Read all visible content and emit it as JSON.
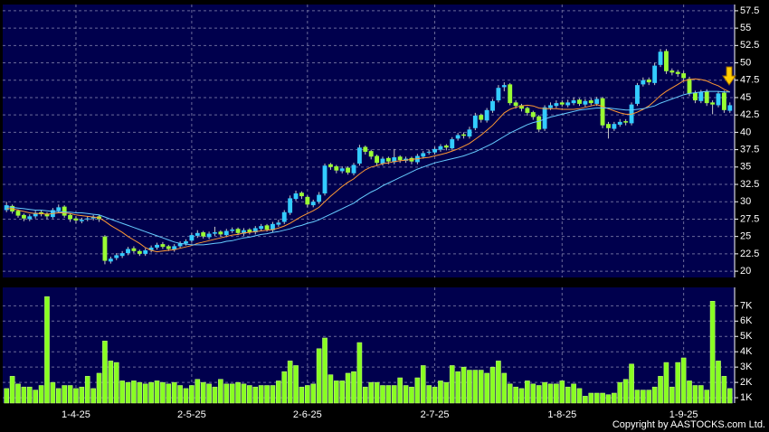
{
  "chart_data": [
    {
      "type": "candlestick",
      "categories": [
        null,
        null,
        null,
        null,
        null,
        null,
        null,
        null,
        null,
        null,
        null,
        null,
        "1-4-25",
        null,
        null,
        null,
        null,
        null,
        null,
        null,
        null,
        null,
        null,
        null,
        null,
        null,
        null,
        null,
        null,
        null,
        null,
        null,
        "2-5-25",
        null,
        null,
        null,
        null,
        null,
        null,
        null,
        null,
        null,
        null,
        null,
        null,
        null,
        null,
        null,
        null,
        null,
        null,
        null,
        "2-6-25",
        null,
        null,
        null,
        null,
        null,
        null,
        null,
        null,
        null,
        null,
        null,
        null,
        null,
        null,
        null,
        null,
        null,
        null,
        null,
        null,
        null,
        "2-7-25",
        null,
        null,
        null,
        null,
        null,
        null,
        null,
        null,
        null,
        null,
        null,
        null,
        null,
        null,
        null,
        null,
        null,
        null,
        null,
        null,
        null,
        "1-8-25",
        null,
        null,
        null,
        null,
        null,
        null,
        null,
        null,
        null,
        null,
        null,
        null,
        null,
        null,
        null,
        null,
        null,
        null,
        null,
        null,
        "1-9-25",
        null,
        null,
        null,
        null,
        null,
        null,
        null,
        null
      ],
      "open": [
        28.8,
        29.4,
        28.7,
        28.1,
        27.5,
        27.9,
        28.5,
        28.3,
        27.8,
        28.7,
        29.3,
        28.1,
        27.6,
        27.2,
        27.5,
        27.6,
        27.9,
        25.0,
        21.4,
        21.9,
        22.2,
        22.6,
        23.3,
        22.9,
        22.5,
        23.0,
        23.4,
        23.9,
        23.6,
        23.1,
        23.6,
        24.0,
        24.4,
        25.1,
        25.6,
        24.9,
        25.4,
        25.7,
        25.2,
        25.8,
        26.1,
        25.4,
        26.0,
        25.6,
        26.1,
        26.6,
        25.9,
        26.7,
        27.1,
        28.4,
        30.4,
        31.3,
        30.7,
        29.5,
        30.0,
        31.2,
        35.4,
        35.1,
        34.4,
        34.9,
        34.1,
        35.5,
        37.9,
        37.3,
        36.6,
        35.5,
        36.3,
        35.7,
        36.5,
        35.9,
        36.3,
        35.7,
        36.5,
        37.1,
        37.1,
        37.5,
        38.1,
        37.7,
        39.1,
        39.7,
        39.4,
        40.6,
        42.5,
        41.7,
        43.1,
        44.6,
        46.5,
        46.9,
        44.3,
        43.9,
        43.5,
        42.9,
        42.3,
        40.5,
        43.5,
        43.8,
        44.3,
        43.9,
        44.2,
        44.7,
        44.0,
        44.6,
        44.1,
        44.9,
        41.2,
        40.5,
        41.1,
        41.6,
        41.3,
        44.1,
        46.9,
        47.6,
        47.1,
        49.7,
        51.7,
        48.9,
        48.7,
        48.5,
        47.7,
        45.7,
        44.5,
        45.9,
        44.3,
        43.9,
        45.7,
        43.1
      ],
      "high": [
        30.0,
        29.6,
        28.9,
        28.3,
        28.2,
        28.7,
        28.8,
        28.5,
        29.1,
        29.6,
        29.5,
        28.3,
        27.9,
        27.7,
        27.9,
        28.1,
        28.1,
        25.2,
        22.1,
        22.6,
        22.9,
        23.5,
        23.6,
        23.1,
        23.3,
        23.7,
        24.1,
        24.2,
        23.8,
        23.9,
        24.3,
        24.6,
        25.5,
        25.9,
        25.8,
        25.7,
        26.4,
        25.9,
        26.1,
        26.3,
        26.3,
        26.2,
        26.2,
        26.5,
        26.8,
        26.8,
        27.1,
        27.4,
        28.8,
        30.9,
        31.6,
        31.5,
        30.9,
        30.3,
        31.4,
        35.5,
        35.6,
        35.3,
        35.1,
        35.1,
        35.6,
        38.2,
        38.1,
        37.5,
        36.8,
        36.5,
        36.5,
        37.6,
        36.7,
        36.5,
        36.5,
        36.9,
        37.3,
        37.5,
        37.9,
        38.3,
        38.3,
        39.3,
        39.9,
        40.0,
        40.8,
        42.8,
        42.7,
        43.5,
        44.8,
        46.8,
        47.2,
        47.1,
        44.6,
        44.1,
        43.7,
        43.1,
        42.5,
        43.9,
        44.3,
        44.6,
        44.6,
        44.7,
        45.0,
        44.9,
        44.8,
        44.9,
        45.1,
        45.1,
        41.5,
        41.5,
        41.9,
        41.9,
        44.3,
        47.1,
        47.9,
        47.9,
        50.0,
        52.0,
        52.0,
        49.2,
        49.0,
        48.8,
        48.0,
        46.0,
        46.1,
        46.2,
        44.6,
        45.9,
        46.0,
        44.3
      ],
      "low": [
        28.5,
        28.3,
        27.7,
        27.2,
        27.2,
        27.6,
        27.9,
        27.5,
        27.6,
        28.4,
        27.7,
        27.1,
        26.9,
        26.9,
        27.2,
        27.3,
        27.1,
        21.0,
        21.1,
        21.6,
        21.9,
        22.3,
        22.6,
        22.2,
        22.2,
        22.7,
        23.1,
        23.2,
        22.9,
        22.8,
        23.3,
        23.7,
        24.1,
        24.8,
        24.7,
        24.6,
        25.1,
        25.0,
        24.9,
        25.5,
        25.2,
        25.1,
        25.3,
        25.3,
        25.8,
        25.7,
        25.6,
        26.4,
        26.8,
        28.1,
        30.1,
        30.4,
        29.2,
        29.2,
        29.7,
        30.9,
        34.6,
        34.1,
        34.1,
        33.9,
        33.8,
        35.2,
        36.8,
        36.1,
        35.2,
        35.2,
        35.4,
        35.4,
        35.6,
        35.6,
        35.4,
        35.4,
        36.2,
        36.8,
        36.8,
        37.2,
        37.4,
        37.4,
        38.8,
        39.1,
        39.1,
        40.3,
        41.4,
        41.4,
        42.8,
        44.3,
        45.9,
        43.9,
        43.4,
        43.0,
        42.4,
        41.8,
        40.0,
        40.2,
        43.2,
        43.5,
        43.7,
        43.6,
        43.9,
        43.8,
        43.7,
        43.9,
        43.8,
        40.6,
        39.1,
        40.2,
        40.8,
        41.0,
        41.0,
        43.8,
        46.6,
        46.8,
        46.8,
        49.4,
        48.4,
        48.2,
        48.0,
        47.4,
        45.2,
        44.2,
        44.2,
        43.8,
        42.6,
        43.6,
        42.8,
        42.8
      ],
      "close": [
        29.5,
        28.6,
        28.0,
        27.6,
        27.9,
        28.4,
        28.2,
        27.9,
        28.8,
        29.2,
        28.0,
        27.5,
        27.3,
        27.4,
        27.6,
        27.8,
        27.5,
        21.5,
        21.8,
        22.3,
        22.6,
        23.2,
        22.9,
        22.5,
        23.0,
        23.4,
        23.8,
        23.5,
        23.2,
        23.6,
        24.0,
        24.3,
        25.2,
        25.5,
        25.0,
        25.4,
        25.6,
        25.3,
        25.8,
        26.0,
        25.5,
        25.9,
        25.6,
        26.2,
        26.5,
        26.0,
        26.8,
        27.0,
        28.5,
        30.5,
        31.2,
        30.8,
        29.6,
        30.0,
        31.0,
        35.2,
        35.0,
        34.5,
        34.8,
        34.2,
        35.3,
        37.8,
        37.2,
        36.5,
        35.6,
        36.2,
        35.8,
        36.4,
        36.0,
        36.2,
        35.8,
        36.6,
        37.0,
        37.2,
        37.6,
        38.0,
        37.8,
        39.0,
        39.6,
        39.5,
        40.4,
        42.4,
        41.8,
        43.2,
        44.5,
        46.4,
        46.8,
        44.2,
        43.8,
        43.4,
        42.8,
        42.2,
        40.4,
        43.6,
        43.9,
        44.2,
        44.0,
        44.3,
        44.6,
        44.1,
        44.5,
        44.2,
        44.8,
        41.0,
        40.6,
        41.2,
        41.5,
        41.4,
        44.0,
        46.8,
        47.5,
        47.2,
        49.6,
        51.6,
        48.8,
        48.6,
        48.4,
        47.8,
        45.6,
        44.6,
        45.8,
        44.2,
        44.0,
        45.6,
        43.2,
        43.9
      ],
      "up_color": "#33ccff",
      "down_color": "#99ff33",
      "panel_color": "#00004d",
      "series": [
        {
          "color": "#ff9933",
          "values": [
            29.0,
            29.0,
            28.8,
            28.6,
            28.4,
            28.3,
            28.3,
            28.2,
            28.3,
            28.4,
            28.4,
            28.3,
            28.1,
            28.0,
            27.9,
            27.8,
            27.7,
            27.2,
            26.6,
            26.1,
            25.6,
            25.0,
            24.5,
            24.0,
            23.4,
            23.0,
            22.8,
            22.9,
            23.0,
            23.1,
            23.3,
            23.5,
            23.7,
            24.0,
            24.2,
            24.4,
            24.6,
            24.8,
            25.0,
            25.2,
            25.3,
            25.5,
            25.6,
            25.7,
            25.8,
            25.9,
            26.0,
            26.2,
            26.5,
            26.9,
            27.4,
            27.9,
            28.3,
            28.7,
            29.2,
            30.0,
            30.8,
            31.5,
            32.2,
            32.8,
            33.3,
            34.0,
            34.6,
            35.0,
            35.2,
            35.5,
            35.6,
            35.8,
            35.9,
            36.0,
            36.1,
            36.2,
            36.3,
            36.4,
            36.6,
            36.8,
            37.0,
            37.3,
            37.6,
            38.0,
            38.4,
            39.0,
            39.6,
            40.3,
            41.0,
            41.9,
            42.8,
            43.3,
            43.6,
            43.8,
            43.9,
            43.8,
            43.5,
            43.4,
            43.4,
            43.4,
            43.3,
            43.3,
            43.3,
            43.4,
            43.6,
            43.8,
            44.0,
            43.7,
            43.4,
            43.1,
            42.8,
            42.6,
            42.6,
            42.9,
            43.3,
            43.8,
            44.5,
            45.3,
            45.9,
            46.4,
            46.9,
            47.4,
            47.6,
            47.7,
            47.6,
            47.4,
            47.0,
            46.7,
            46.2,
            45.8
          ]
        },
        {
          "color": "#66ccff",
          "values": [
            29.3,
            29.2,
            29.1,
            29.0,
            28.9,
            28.8,
            28.8,
            28.7,
            28.6,
            28.6,
            28.5,
            28.5,
            28.4,
            28.4,
            28.3,
            28.2,
            28.1,
            27.8,
            27.5,
            27.2,
            26.9,
            26.6,
            26.3,
            26.0,
            25.7,
            25.4,
            25.1,
            24.8,
            24.5,
            24.2,
            24.0,
            23.9,
            23.8,
            23.8,
            23.8,
            23.9,
            24.0,
            24.1,
            24.3,
            24.4,
            24.6,
            24.8,
            24.9,
            25.1,
            25.3,
            25.4,
            25.6,
            25.7,
            25.9,
            26.1,
            26.4,
            26.6,
            26.9,
            27.1,
            27.4,
            27.8,
            28.2,
            28.6,
            29.0,
            29.4,
            29.8,
            30.4,
            30.9,
            31.4,
            31.8,
            32.3,
            32.7,
            33.1,
            33.5,
            33.9,
            34.3,
            34.7,
            35.0,
            35.3,
            35.6,
            35.8,
            36.0,
            36.2,
            36.4,
            36.6,
            36.9,
            37.2,
            37.6,
            38.0,
            38.4,
            38.9,
            39.4,
            39.9,
            40.3,
            40.7,
            41.1,
            41.4,
            41.6,
            41.9,
            42.2,
            42.4,
            42.6,
            42.8,
            43.0,
            43.2,
            43.3,
            43.4,
            43.5,
            43.5,
            43.5,
            43.4,
            43.3,
            43.2,
            43.2,
            43.3,
            43.4,
            43.6,
            43.8,
            44.2,
            44.5,
            44.8,
            45.1,
            45.4,
            45.6,
            45.7,
            45.8,
            45.9,
            45.9,
            45.9,
            45.8,
            45.8
          ]
        }
      ],
      "ylim": [
        19.1,
        58.4
      ],
      "yticks": [
        20,
        22.5,
        25,
        27.5,
        30,
        32.5,
        35,
        37.5,
        40,
        42.5,
        45,
        47.5,
        50,
        52.5,
        55,
        57.5
      ],
      "grid": true
    },
    {
      "type": "bar",
      "values": [
        1600,
        2400,
        1900,
        1700,
        1700,
        1500,
        1800,
        7600,
        2000,
        1600,
        1800,
        1800,
        1600,
        1700,
        2400,
        1600,
        2600,
        4700,
        3400,
        3300,
        2100,
        2000,
        2100,
        2000,
        1900,
        2000,
        2100,
        2000,
        1900,
        2000,
        1800,
        1600,
        1800,
        2200,
        2000,
        1900,
        1700,
        2200,
        1900,
        1900,
        2000,
        1900,
        1800,
        1700,
        1800,
        1800,
        1800,
        2100,
        2700,
        3400,
        3100,
        1700,
        1800,
        1900,
        4200,
        4900,
        2500,
        2100,
        2100,
        2600,
        2700,
        4600,
        1700,
        2000,
        2000,
        1800,
        1800,
        1800,
        2300,
        1800,
        1700,
        2300,
        3100,
        1800,
        1700,
        2100,
        2000,
        3100,
        2700,
        3000,
        2800,
        2800,
        2800,
        2600,
        3000,
        3400,
        2600,
        1900,
        1700,
        1600,
        2100,
        1900,
        1800,
        2000,
        1900,
        1900,
        2100,
        1700,
        1900,
        1600,
        1100,
        1300,
        1300,
        1300,
        1200,
        1300,
        2000,
        2200,
        3200,
        1500,
        1500,
        1500,
        1700,
        2400,
        3300,
        1700,
        3300,
        3600,
        2100,
        1800,
        1800,
        1500,
        7300,
        3400,
        2400,
        1600
      ],
      "color": "#88ff22",
      "panel_color": "#00004d",
      "ylim": [
        650,
        8200
      ],
      "yticks": [
        {
          "value": 1000,
          "label": "1K"
        },
        {
          "value": 2000,
          "label": "2K"
        },
        {
          "value": 3000,
          "label": "3K"
        },
        {
          "value": 4000,
          "label": "4K"
        },
        {
          "value": 5000,
          "label": "5K"
        },
        {
          "value": 6000,
          "label": "6K"
        },
        {
          "value": 7000,
          "label": "7K"
        }
      ],
      "grid": true
    }
  ],
  "footer": "Copyright by AASTOCKS.com Ltd."
}
